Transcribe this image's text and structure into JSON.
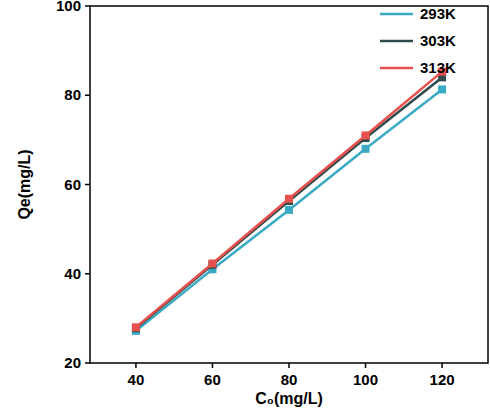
{
  "chart_data": {
    "type": "line",
    "x_label": "C₀(mg/L)",
    "y_label": "Qe(mg/L)",
    "x": [
      40,
      60,
      80,
      100,
      120
    ],
    "series": [
      {
        "name": "293K",
        "color": "#3aaac4",
        "values": [
          27.2,
          41.0,
          54.3,
          68.0,
          81.3
        ]
      },
      {
        "name": "303K",
        "color": "#2f4b4d",
        "values": [
          27.8,
          42.0,
          56.3,
          70.4,
          84.0
        ]
      },
      {
        "name": "313K",
        "color": "#e8504f",
        "values": [
          28.0,
          42.3,
          56.8,
          71.0,
          85.3
        ]
      }
    ],
    "xlim": [
      28,
      132
    ],
    "xticks": [
      40,
      60,
      80,
      100,
      120
    ],
    "ylim": [
      20,
      100
    ],
    "yticks": [
      20,
      40,
      60,
      80,
      100
    ],
    "marker": "square",
    "legend": "upper right",
    "grid": false
  }
}
